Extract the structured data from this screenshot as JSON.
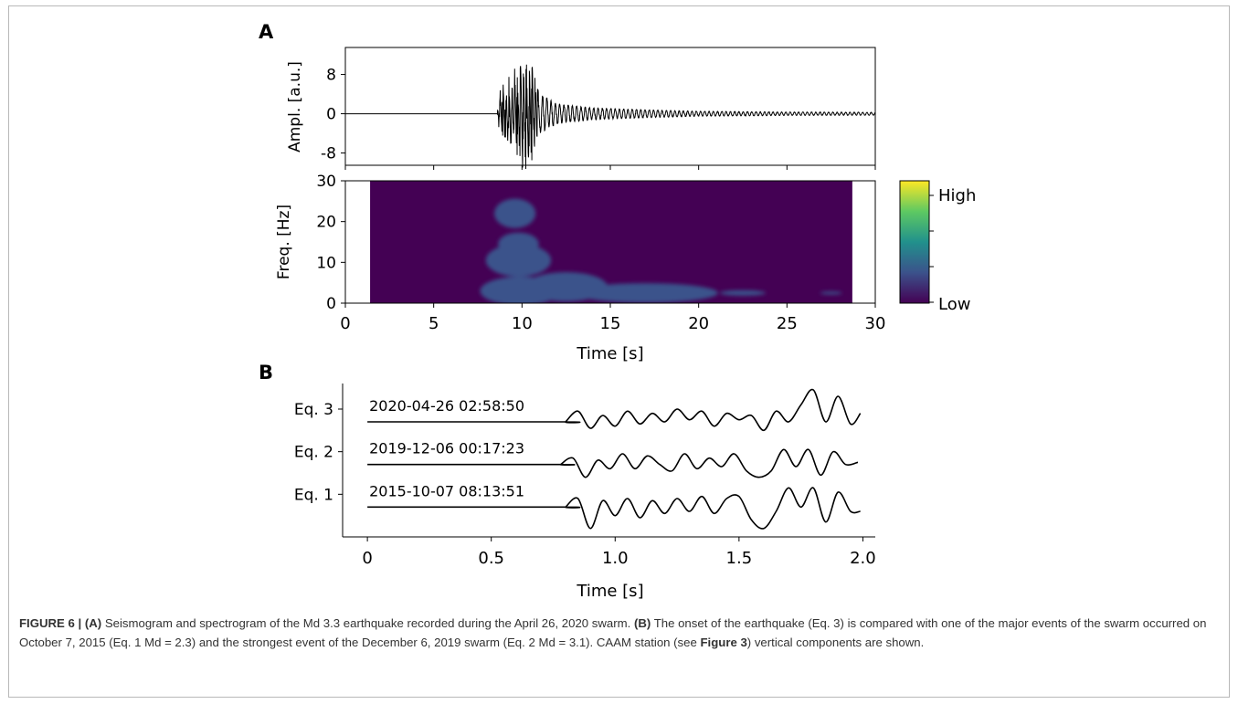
{
  "panels": {
    "a_label": "A",
    "b_label": "B"
  },
  "chart_data": [
    {
      "type": "line",
      "name_panel": "A",
      "ylabel": "Ampl. [a.u.]",
      "yticks": [
        "8",
        "0",
        "-8"
      ],
      "ytick_values": [
        8,
        0,
        -8
      ],
      "ylim": [
        -10.5,
        13.5
      ],
      "xlim": [
        0,
        30
      ],
      "x_is_time_seconds": true,
      "series": [
        {
          "x_knots": [
            0,
            8.6,
            8.7,
            9.5,
            10.1,
            10.6,
            11.0,
            12.0,
            14.0,
            17.0,
            20.0,
            25.0,
            30.0
          ],
          "amplitude_envelope": [
            0,
            0,
            5.5,
            9.5,
            11.5,
            10.8,
            4.0,
            2.0,
            1.2,
            0.8,
            0.5,
            0.35,
            0.3
          ]
        }
      ]
    },
    {
      "type": "heatmap",
      "name_panel": "A",
      "ylabel": "Freq. [Hz]",
      "xlabel": "Time [s]",
      "xticks": [
        "0",
        "5",
        "10",
        "15",
        "20",
        "25",
        "30"
      ],
      "xtick_values": [
        0,
        5,
        10,
        15,
        20,
        25,
        30
      ],
      "yticks": [
        "0",
        "10",
        "20",
        "30"
      ],
      "ytick_values": [
        0,
        10,
        20,
        30
      ],
      "xlim": [
        0,
        30
      ],
      "ylim": [
        0,
        30
      ],
      "data_extent_x": [
        1.4,
        28.7
      ],
      "colorbar": {
        "high_label": "High",
        "low_label": "Low",
        "colormap": [
          "#440154",
          "#3b528b",
          "#21918c",
          "#5ec962",
          "#fde725"
        ]
      },
      "energy_blobs_time_freq": [
        {
          "t": 9.8,
          "f": 10.5,
          "rt": 1.3,
          "rf": 2.5,
          "level": 1.0
        },
        {
          "t": 9.8,
          "f": 14.5,
          "rt": 0.9,
          "rf": 2.0,
          "level": 0.8
        },
        {
          "t": 9.9,
          "f": 3.0,
          "rt": 1.6,
          "rf": 2.2,
          "level": 0.95
        },
        {
          "t": 9.6,
          "f": 22.0,
          "rt": 1.0,
          "rf": 3.0,
          "level": 0.45
        },
        {
          "t": 12.5,
          "f": 4.0,
          "rt": 2.0,
          "rf": 3.0,
          "level": 0.55
        },
        {
          "t": 17.0,
          "f": 2.5,
          "rt": 3.5,
          "rf": 2.0,
          "level": 0.4
        },
        {
          "t": 22.5,
          "f": 2.5,
          "rt": 2.5,
          "rf": 1.5,
          "level": 0.3
        },
        {
          "t": 27.5,
          "f": 2.5,
          "rt": 1.2,
          "rf": 0.8,
          "level": 0.2
        }
      ]
    },
    {
      "type": "line",
      "name_panel": "B",
      "xlabel": "Time [s]",
      "xticks": [
        "0",
        "0.5",
        "1.0",
        "1.5",
        "2.0"
      ],
      "xtick_values": [
        0,
        0.5,
        1.0,
        1.5,
        2.0
      ],
      "xlim": [
        -0.1,
        2.05
      ],
      "yticks": [
        "Eq. 3",
        "Eq. 2",
        "Eq. 1"
      ],
      "ytick_values": [
        3,
        2,
        1
      ],
      "ylim": [
        0,
        3.6
      ],
      "series": [
        {
          "name": "Eq. 3",
          "date_label": "2020-04-26 02:58:50",
          "baseline": 2.7,
          "onset": 0.8,
          "x": [
            0.8,
            0.85,
            0.9,
            0.95,
            1.0,
            1.05,
            1.1,
            1.15,
            1.2,
            1.25,
            1.3,
            1.35,
            1.4,
            1.45,
            1.5,
            1.55,
            1.6,
            1.65,
            1.7,
            1.75,
            1.8,
            1.85,
            1.9,
            1.95,
            1.99
          ],
          "y": [
            2.7,
            2.95,
            2.55,
            2.85,
            2.6,
            2.95,
            2.65,
            2.9,
            2.7,
            3.0,
            2.75,
            2.95,
            2.6,
            2.9,
            2.75,
            2.85,
            2.5,
            2.95,
            2.7,
            3.1,
            3.45,
            2.7,
            3.3,
            2.65,
            2.9
          ]
        },
        {
          "name": "Eq. 2",
          "date_label": "2019-12-06 00:17:23",
          "baseline": 1.7,
          "onset": 0.78,
          "x": [
            0.78,
            0.83,
            0.88,
            0.93,
            0.98,
            1.03,
            1.08,
            1.13,
            1.18,
            1.23,
            1.28,
            1.33,
            1.38,
            1.43,
            1.48,
            1.53,
            1.58,
            1.63,
            1.68,
            1.73,
            1.78,
            1.83,
            1.88,
            1.93,
            1.98
          ],
          "y": [
            1.7,
            1.85,
            1.4,
            1.8,
            1.6,
            1.95,
            1.6,
            1.9,
            1.7,
            1.55,
            1.95,
            1.6,
            1.85,
            1.65,
            1.95,
            1.55,
            1.4,
            1.55,
            2.05,
            1.65,
            2.05,
            1.45,
            2.0,
            1.7,
            1.75
          ]
        },
        {
          "name": "Eq. 1",
          "date_label": "2015-10-07 08:13:51",
          "baseline": 0.7,
          "onset": 0.8,
          "x": [
            0.8,
            0.85,
            0.9,
            0.95,
            1.0,
            1.05,
            1.1,
            1.15,
            1.2,
            1.25,
            1.3,
            1.35,
            1.4,
            1.45,
            1.5,
            1.55,
            1.6,
            1.65,
            1.7,
            1.75,
            1.8,
            1.85,
            1.9,
            1.95,
            1.99
          ],
          "y": [
            0.7,
            0.9,
            0.2,
            0.85,
            0.5,
            0.9,
            0.45,
            0.85,
            0.55,
            0.9,
            0.6,
            0.95,
            0.55,
            0.9,
            0.95,
            0.4,
            0.2,
            0.6,
            1.15,
            0.7,
            1.15,
            0.35,
            1.05,
            0.6,
            0.6
          ]
        }
      ]
    }
  ],
  "caption": {
    "figure_label": "FIGURE 6 |",
    "a_tag": "(A)",
    "a_text": "Seismogram and spectrogram of the Md 3.3 earthquake recorded during the April 26, 2020 swarm.",
    "b_tag": "(B)",
    "b_text_1": "The onset of the earthquake (Eq. 3) is compared with one of the major events of the swarm occurred on October 7, 2015 (Eq. 1 Md = 2.3) and the strongest event of the December 6, 2019 swarm (Eq. 2 Md = 3.1). CAAM station (see",
    "b_ref": "Figure 3",
    "b_text_2": ") vertical components are shown."
  }
}
